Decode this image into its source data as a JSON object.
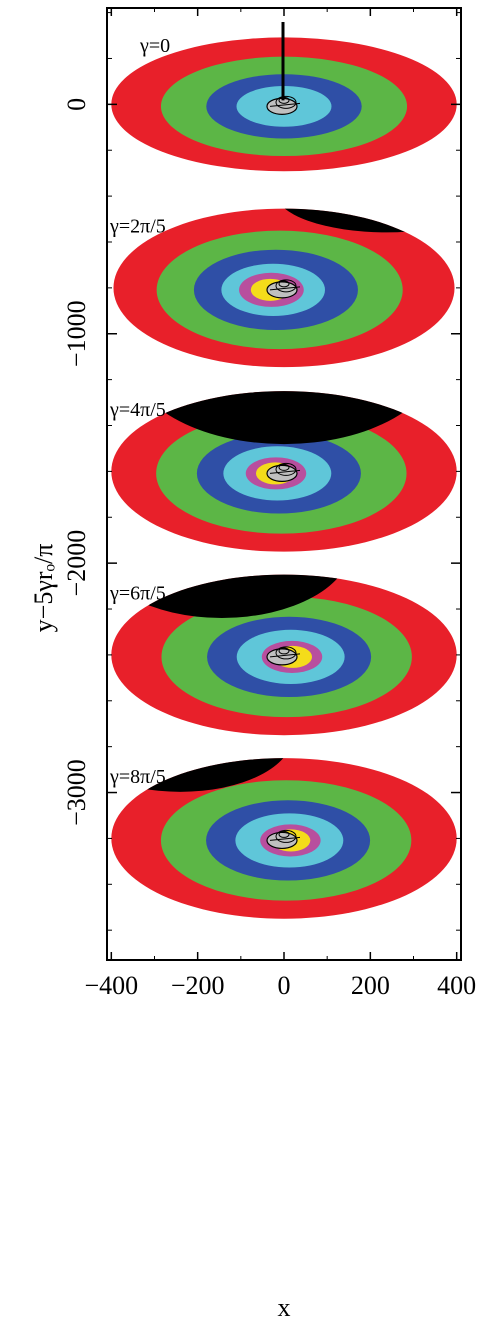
{
  "chart_data": {
    "type": "scatter",
    "title": "",
    "xlabel": "x",
    "ylabel": "y−5γrₒ/π",
    "xlim": [
      -410,
      410
    ],
    "ylim": [
      -3730,
      420
    ],
    "grid": false,
    "xticks": [
      {
        "value": -400,
        "label": "−400"
      },
      {
        "value": -200,
        "label": "−200"
      },
      {
        "value": 0,
        "label": "0"
      },
      {
        "value": 200,
        "label": "200"
      },
      {
        "value": 400,
        "label": "400"
      }
    ],
    "yticks": [
      {
        "value": 0,
        "label": "0"
      },
      {
        "value": -1000,
        "label": "−1000"
      },
      {
        "value": -2000,
        "label": "−2000"
      },
      {
        "value": -3000,
        "label": "−3000"
      }
    ],
    "ring_colors": [
      "#e8202a",
      "#5cb646",
      "#2f4fa6",
      "#5fc6d9",
      "#b84f9e",
      "#f4dc1a"
    ],
    "outer_band_color": "#000000",
    "center_color": "#c0c0c0",
    "panels": [
      {
        "label": "γ=0",
        "y_center": 0,
        "rings_x": [
          400,
          285,
          180,
          110,
          0,
          0
        ],
        "aspect": 0.25,
        "spiral": 0,
        "shift": 0,
        "black_band": 0,
        "band_side": 0
      },
      {
        "label": "γ=2π/5",
        "y_center": -800,
        "rings_x": [
          395,
          285,
          190,
          120,
          75,
          45
        ],
        "aspect": 0.3,
        "spiral": 1,
        "shift": 40,
        "black_band": 0.25,
        "band_side": 1
      },
      {
        "label": "γ=4π/5",
        "y_center": -1600,
        "rings_x": [
          400,
          290,
          190,
          125,
          70,
          45
        ],
        "aspect": 0.3,
        "spiral": 1,
        "shift": 25,
        "black_band": 0.55,
        "band_side": 0
      },
      {
        "label": "γ=6π/5",
        "y_center": -2400,
        "rings_x": [
          400,
          290,
          190,
          125,
          70,
          45
        ],
        "aspect": 0.3,
        "spiral": 1,
        "shift": -25,
        "black_band": 0.45,
        "band_side": -0.6
      },
      {
        "label": "γ=8π/5",
        "y_center": -3200,
        "rings_x": [
          400,
          290,
          190,
          125,
          70,
          45
        ],
        "aspect": 0.3,
        "spiral": 1,
        "shift": -20,
        "black_band": 0.35,
        "band_side": -1
      }
    ]
  }
}
